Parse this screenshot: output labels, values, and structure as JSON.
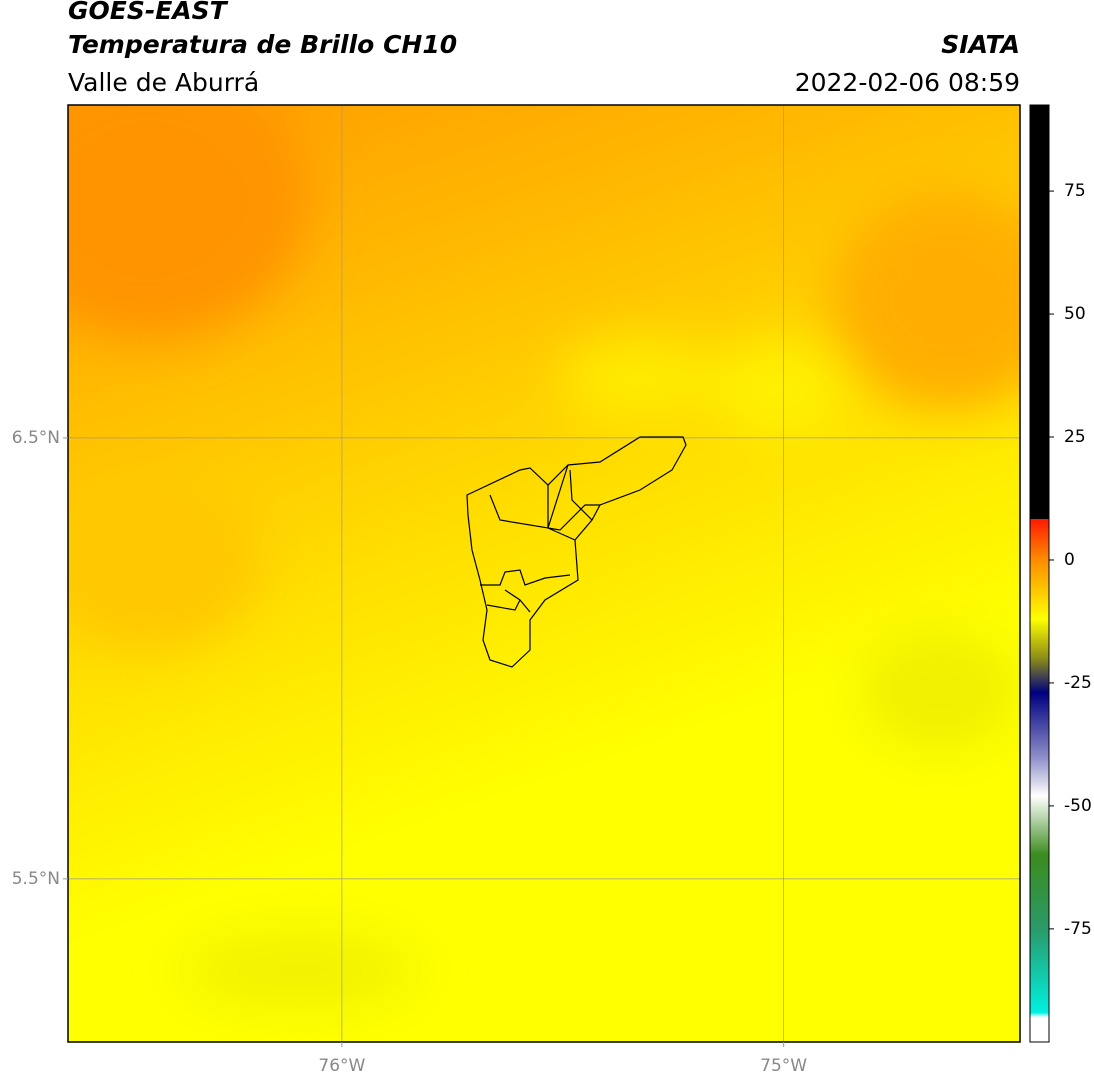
{
  "header": {
    "title": "GOES-EAST",
    "subtitle": "Temperatura de Brillo CH10",
    "region": "Valle de Aburrá",
    "source": "SIATA",
    "datetime": "2022-02-06 08:59"
  },
  "map": {
    "lonlim": [
      -76.62,
      -74.465
    ],
    "latlim": [
      5.13,
      7.255
    ],
    "lonticks": [
      {
        "value": -76,
        "label": "76°W"
      },
      {
        "value": -75,
        "label": "75°W"
      }
    ],
    "latticks": [
      {
        "value": 6.5,
        "label": "6.5°N"
      },
      {
        "value": 5.5,
        "label": "5.5°N"
      }
    ],
    "grid": true
  },
  "colorbar": {
    "lim": [
      -98,
      92.5
    ],
    "ticks": [
      75,
      50,
      25,
      0,
      -25,
      -50,
      -75
    ],
    "stops": [
      {
        "value": 92.5,
        "color": "#000000"
      },
      {
        "value": 8.3,
        "color": "#000000"
      },
      {
        "value": 8.3,
        "color": "#ff1a00"
      },
      {
        "value": 0,
        "color": "#ff8c00"
      },
      {
        "value": -12,
        "color": "#ffff00"
      },
      {
        "value": -20,
        "color": "#8c8c1a"
      },
      {
        "value": -27,
        "color": "#000080"
      },
      {
        "value": -40,
        "color": "#8c8cc8"
      },
      {
        "value": -48,
        "color": "#ffffff"
      },
      {
        "value": -60,
        "color": "#3c8c1e"
      },
      {
        "value": -75,
        "color": "#2a9a6a"
      },
      {
        "value": -92,
        "color": "#00f0e0"
      },
      {
        "value": -93,
        "color": "#ffffff"
      },
      {
        "value": -98,
        "color": "#ffffff"
      }
    ]
  }
}
